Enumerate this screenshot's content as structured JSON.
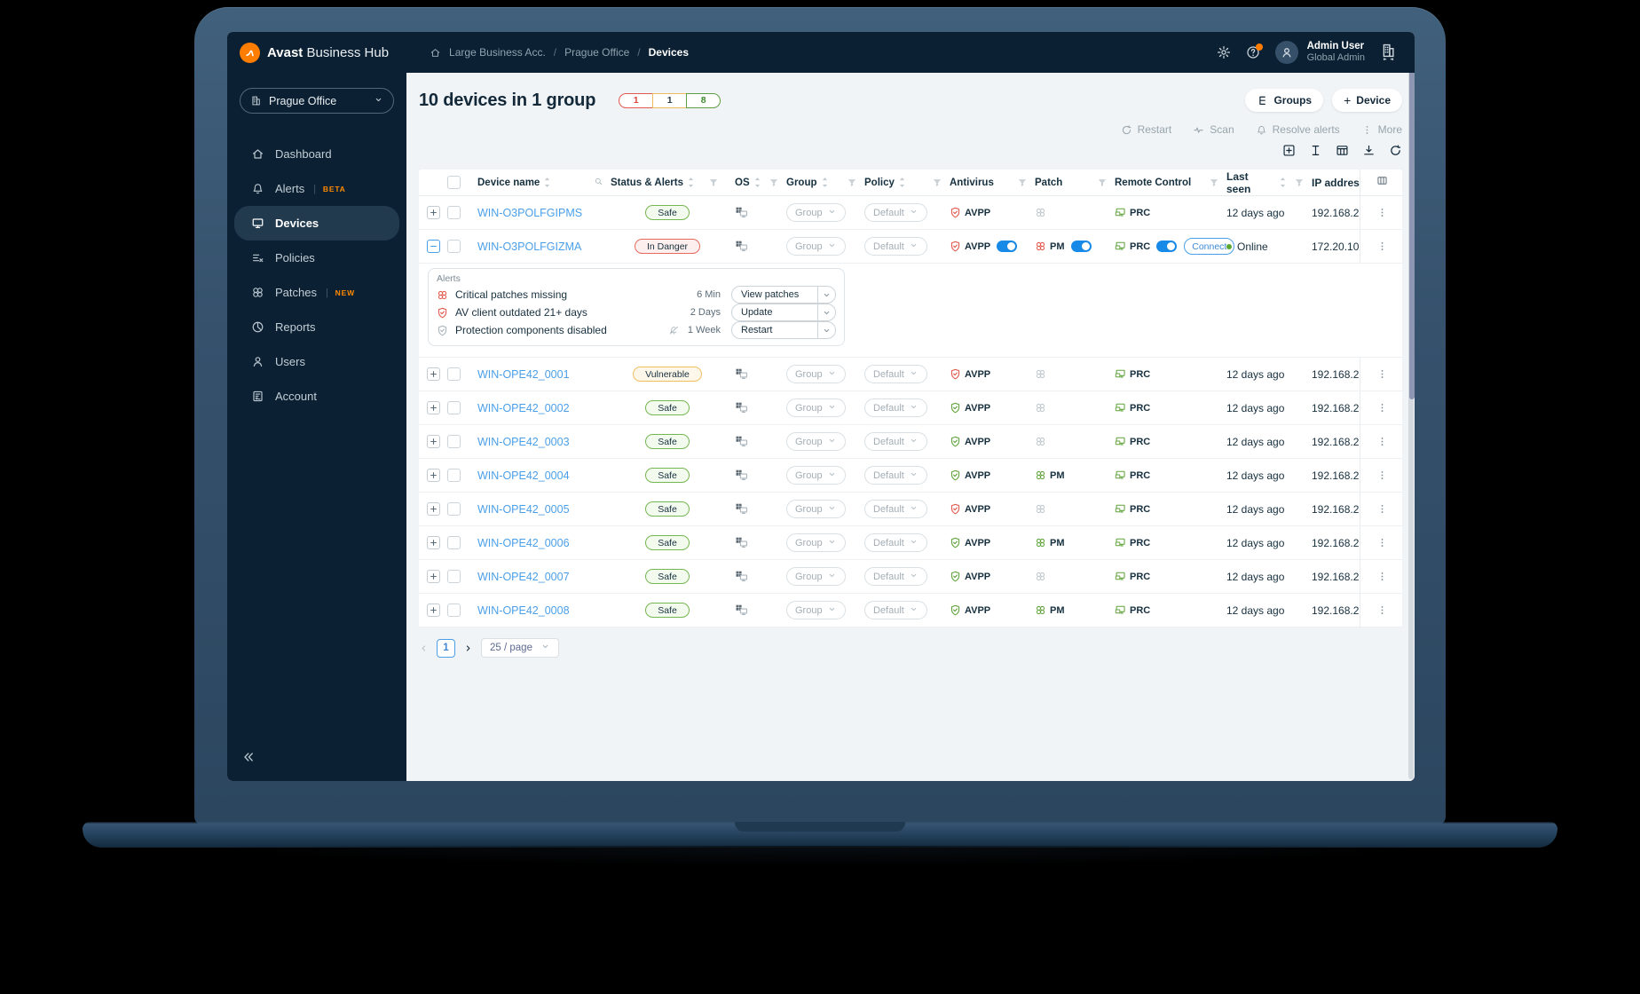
{
  "colors": {
    "brand_orange": "#ff7d00",
    "navy": "#0b2032",
    "link_blue": "#4b9fe8",
    "safe_green": "#61a33c",
    "danger_red": "#e2584d",
    "warning_amber": "#efb95d",
    "toggle_blue": "#1789e6"
  },
  "topbar": {
    "brand_bold": "Avast",
    "brand_rest": "Business Hub",
    "breadcrumb": {
      "account": "Large Business Acc.",
      "separator": "/",
      "site": "Prague Office",
      "page": "Devices"
    },
    "user": {
      "name": "Admin User",
      "role": "Global Admin"
    }
  },
  "sidebar": {
    "org_selector_label": "Prague Office",
    "items": [
      {
        "icon": "home",
        "label": "Dashboard",
        "badge": "",
        "active": false
      },
      {
        "icon": "bell",
        "label": "Alerts",
        "badge": "BETA",
        "active": false
      },
      {
        "icon": "monitor",
        "label": "Devices",
        "badge": "",
        "active": true
      },
      {
        "icon": "policies",
        "label": "Policies",
        "badge": "",
        "active": false
      },
      {
        "icon": "patch",
        "label": "Patches",
        "badge": "NEW",
        "active": false
      },
      {
        "icon": "reports",
        "label": "Reports",
        "badge": "",
        "active": false
      },
      {
        "icon": "users",
        "label": "Users",
        "badge": "",
        "active": false
      },
      {
        "icon": "account",
        "label": "Account",
        "badge": "",
        "active": false
      }
    ]
  },
  "page": {
    "title": "10 devices in 1 group",
    "counts": [
      {
        "value": "1",
        "kind": "danger"
      },
      {
        "value": "1",
        "kind": "warning"
      },
      {
        "value": "8",
        "kind": "safe"
      }
    ],
    "groups_button": "Groups",
    "add_device_plus": "+",
    "add_device_button": "Device",
    "bulk_actions": [
      {
        "icon": "refresh",
        "label": "Restart"
      },
      {
        "icon": "pulse",
        "label": "Scan"
      },
      {
        "icon": "bell",
        "label": "Resolve alerts"
      },
      {
        "icon": "dots",
        "label": "More"
      }
    ]
  },
  "table": {
    "columns": [
      {
        "key": "name",
        "label": "Device name",
        "sort": true,
        "search": true,
        "filter": false
      },
      {
        "key": "status",
        "label": "Status & Alerts",
        "sort": true,
        "search": false,
        "filter": true
      },
      {
        "key": "os",
        "label": "OS",
        "sort": true,
        "search": false,
        "filter": true
      },
      {
        "key": "group",
        "label": "Group",
        "sort": true,
        "search": false,
        "filter": true
      },
      {
        "key": "policy",
        "label": "Policy",
        "sort": true,
        "search": false,
        "filter": true
      },
      {
        "key": "av",
        "label": "Antivirus",
        "sort": false,
        "search": false,
        "filter": true
      },
      {
        "key": "patch",
        "label": "Patch",
        "sort": false,
        "search": false,
        "filter": true
      },
      {
        "key": "rc",
        "label": "Remote Control",
        "sort": false,
        "search": false,
        "filter": true
      },
      {
        "key": "seen",
        "label": "Last seen",
        "sort": true,
        "search": false,
        "filter": true
      },
      {
        "key": "ip",
        "label": "IP address",
        "sort": false,
        "search": false,
        "filter": false
      }
    ],
    "rows": [
      {
        "name": "WIN-O3POLFGIPMS",
        "status": "Safe",
        "status_kind": "safe",
        "group": "Group",
        "policy": "Default",
        "av_label": "AVPP",
        "av_state": "danger",
        "av_toggle": false,
        "patch_label": "",
        "patch_state": "off",
        "patch_toggle": false,
        "rc_label": "PRC",
        "rc_toggle": false,
        "connect_label": "",
        "last_seen": "12 days ago",
        "online": false,
        "ip": "192.168.2",
        "expanded": false
      },
      {
        "name": "WIN-O3POLFGIZMA",
        "status": "In Danger",
        "status_kind": "danger",
        "group": "Group",
        "policy": "Default",
        "av_label": "AVPP",
        "av_state": "danger",
        "av_toggle": true,
        "patch_label": "PM",
        "patch_state": "danger",
        "patch_toggle": true,
        "rc_label": "PRC",
        "rc_toggle": true,
        "connect_label": "Connect",
        "last_seen": "Online",
        "online": true,
        "ip": "172.20.10",
        "expanded": true
      },
      {
        "name": "WIN-OPE42_0001",
        "status": "Vulnerable",
        "status_kind": "warning",
        "group": "Group",
        "policy": "Default",
        "av_label": "AVPP",
        "av_state": "danger",
        "av_toggle": false,
        "patch_label": "",
        "patch_state": "off",
        "patch_toggle": false,
        "rc_label": "PRC",
        "rc_toggle": false,
        "connect_label": "",
        "last_seen": "12 days ago",
        "online": false,
        "ip": "192.168.2",
        "expanded": false
      },
      {
        "name": "WIN-OPE42_0002",
        "status": "Safe",
        "status_kind": "safe",
        "group": "Group",
        "policy": "Default",
        "av_label": "AVPP",
        "av_state": "safe",
        "av_toggle": false,
        "patch_label": "",
        "patch_state": "off",
        "patch_toggle": false,
        "rc_label": "PRC",
        "rc_toggle": false,
        "connect_label": "",
        "last_seen": "12 days ago",
        "online": false,
        "ip": "192.168.2",
        "expanded": false
      },
      {
        "name": "WIN-OPE42_0003",
        "status": "Safe",
        "status_kind": "safe",
        "group": "Group",
        "policy": "Default",
        "av_label": "AVPP",
        "av_state": "safe",
        "av_toggle": false,
        "patch_label": "",
        "patch_state": "off",
        "patch_toggle": false,
        "rc_label": "PRC",
        "rc_toggle": false,
        "connect_label": "",
        "last_seen": "12 days ago",
        "online": false,
        "ip": "192.168.2",
        "expanded": false
      },
      {
        "name": "WIN-OPE42_0004",
        "status": "Safe",
        "status_kind": "safe",
        "group": "Group",
        "policy": "Default",
        "av_label": "AVPP",
        "av_state": "safe",
        "av_toggle": false,
        "patch_label": "PM",
        "patch_state": "safe",
        "patch_toggle": false,
        "rc_label": "PRC",
        "rc_toggle": false,
        "connect_label": "",
        "last_seen": "12 days ago",
        "online": false,
        "ip": "192.168.2",
        "expanded": false
      },
      {
        "name": "WIN-OPE42_0005",
        "status": "Safe",
        "status_kind": "safe",
        "group": "Group",
        "policy": "Default",
        "av_label": "AVPP",
        "av_state": "danger",
        "av_toggle": false,
        "patch_label": "",
        "patch_state": "off",
        "patch_toggle": false,
        "rc_label": "PRC",
        "rc_toggle": false,
        "connect_label": "",
        "last_seen": "12 days ago",
        "online": false,
        "ip": "192.168.2",
        "expanded": false
      },
      {
        "name": "WIN-OPE42_0006",
        "status": "Safe",
        "status_kind": "safe",
        "group": "Group",
        "policy": "Default",
        "av_label": "AVPP",
        "av_state": "safe",
        "av_toggle": false,
        "patch_label": "PM",
        "patch_state": "safe",
        "patch_toggle": false,
        "rc_label": "PRC",
        "rc_toggle": false,
        "connect_label": "",
        "last_seen": "12 days ago",
        "online": false,
        "ip": "192.168.2",
        "expanded": false
      },
      {
        "name": "WIN-OPE42_0007",
        "status": "Safe",
        "status_kind": "safe",
        "group": "Group",
        "policy": "Default",
        "av_label": "AVPP",
        "av_state": "safe",
        "av_toggle": false,
        "patch_label": "",
        "patch_state": "off",
        "patch_toggle": false,
        "rc_label": "PRC",
        "rc_toggle": false,
        "connect_label": "",
        "last_seen": "12 days ago",
        "online": false,
        "ip": "192.168.2",
        "expanded": false
      },
      {
        "name": "WIN-OPE42_0008",
        "status": "Safe",
        "status_kind": "safe",
        "group": "Group",
        "policy": "Default",
        "av_label": "AVPP",
        "av_state": "safe",
        "av_toggle": false,
        "patch_label": "PM",
        "patch_state": "safe",
        "patch_toggle": false,
        "rc_label": "PRC",
        "rc_toggle": false,
        "connect_label": "",
        "last_seen": "12 days ago",
        "online": false,
        "ip": "192.168.2",
        "expanded": false
      }
    ],
    "alerts_panel": {
      "title": "Alerts",
      "items": [
        {
          "icon": "patch",
          "icon_state": "danger",
          "text": "Critical patches missing",
          "muted_bell": false,
          "age": "6 Min",
          "action": "View patches"
        },
        {
          "icon": "shield",
          "icon_state": "danger",
          "text": "AV client outdated 21+ days",
          "muted_bell": false,
          "age": "2 Days",
          "action": "Update"
        },
        {
          "icon": "shield",
          "icon_state": "muted",
          "text": "Protection components disabled",
          "muted_bell": true,
          "age": "1 Week",
          "action": "Restart"
        }
      ]
    }
  },
  "pagination": {
    "current": "1",
    "size": "25 / page"
  }
}
